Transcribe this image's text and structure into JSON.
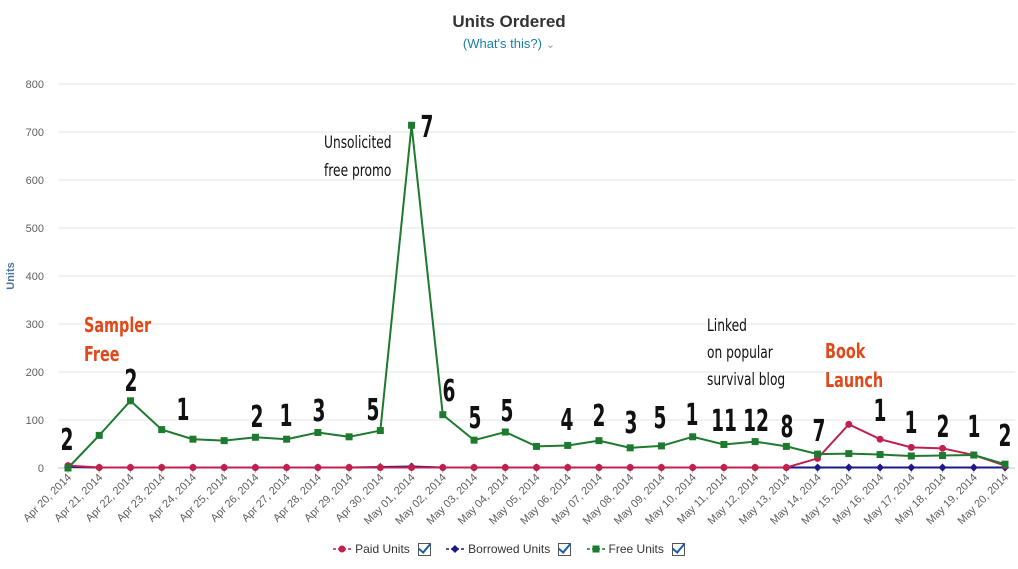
{
  "header": {
    "title": "Units Ordered",
    "subtitle": "(What's this?)"
  },
  "chart_data": {
    "type": "line",
    "title": "Units Ordered",
    "ylabel": "Units",
    "xlabel": "",
    "ylim": [
      0,
      800
    ],
    "yticks": [
      0,
      100,
      200,
      300,
      400,
      500,
      600,
      700,
      800
    ],
    "grid": true,
    "legend_position": "bottom",
    "categories": [
      "Apr 20, 2014",
      "Apr 21, 2014",
      "Apr 22, 2014",
      "Apr 23, 2014",
      "Apr 24, 2014",
      "Apr 25, 2014",
      "Apr 26, 2014",
      "Apr 27, 2014",
      "Apr 28, 2014",
      "Apr 29, 2014",
      "Apr 30, 2014",
      "May 01, 2014",
      "May 02, 2014",
      "May 03, 2014",
      "May 04, 2014",
      "May 05, 2014",
      "May 06, 2014",
      "May 07, 2014",
      "May 08, 2014",
      "May 09, 2014",
      "May 10, 2014",
      "May 11, 2014",
      "May 12, 2014",
      "May 13, 2014",
      "May 14, 2014",
      "May 15, 2014",
      "May 16, 2014",
      "May 17, 2014",
      "May 18, 2014",
      "May 19, 2014",
      "May 20, 2014"
    ],
    "series": [
      {
        "name": "Paid Units",
        "color": "#c0204e",
        "marker": "circle",
        "values": [
          5,
          1,
          1,
          1,
          1,
          1,
          1,
          1,
          1,
          1,
          1,
          1,
          1,
          1,
          1,
          1,
          1,
          1,
          1,
          1,
          1,
          1,
          1,
          1,
          20,
          91,
          60,
          43,
          41,
          27,
          5
        ]
      },
      {
        "name": "Borrowed Units",
        "color": "#1a1a8a",
        "marker": "diamond",
        "values": [
          2,
          1,
          1,
          1,
          1,
          1,
          1,
          1,
          1,
          1,
          2,
          3,
          1,
          1,
          1,
          1,
          1,
          1,
          1,
          1,
          1,
          1,
          1,
          1,
          1,
          1,
          1,
          1,
          1,
          1,
          1
        ]
      },
      {
        "name": "Free Units",
        "color": "#1e7a2e",
        "marker": "square",
        "values": [
          0,
          68,
          140,
          80,
          60,
          57,
          64,
          60,
          74,
          65,
          78,
          714,
          111,
          58,
          75,
          45,
          47,
          57,
          42,
          46,
          65,
          49,
          55,
          45,
          29,
          30,
          28,
          25,
          26,
          27,
          8
        ]
      }
    ],
    "data_labels": [
      {
        "index": 0,
        "text": "2"
      },
      {
        "index": 2,
        "text": "2"
      },
      {
        "index": 4,
        "text": "1"
      },
      {
        "index": 6,
        "text": "2"
      },
      {
        "index": 7,
        "text": "1"
      },
      {
        "index": 8,
        "text": "3"
      },
      {
        "index": 10,
        "text": "5"
      },
      {
        "index": 11,
        "text": "7"
      },
      {
        "index": 12,
        "text": "6"
      },
      {
        "index": 13,
        "text": "5"
      },
      {
        "index": 14,
        "text": "5"
      },
      {
        "index": 16,
        "text": "4"
      },
      {
        "index": 17,
        "text": "2"
      },
      {
        "index": 18,
        "text": "3"
      },
      {
        "index": 19,
        "text": "5"
      },
      {
        "index": 20,
        "text": "1"
      },
      {
        "index": 21,
        "text": "11"
      },
      {
        "index": 22,
        "text": "12"
      },
      {
        "index": 23,
        "text": "8"
      },
      {
        "index": 24,
        "text": "7"
      },
      {
        "index": 26,
        "text": "1"
      },
      {
        "index": 27,
        "text": "1"
      },
      {
        "index": 28,
        "text": "2"
      },
      {
        "index": 29,
        "text": "1"
      },
      {
        "index": 30,
        "text": "2"
      }
    ],
    "annotations": [
      {
        "lines": [
          "Sampler",
          "Free"
        ],
        "color": "#e04a1a"
      },
      {
        "lines": [
          "Unsolicited",
          "free promo"
        ],
        "color": "#111111"
      },
      {
        "lines": [
          "Linked",
          "on popular",
          "survival blog"
        ],
        "color": "#111111"
      },
      {
        "lines": [
          "Book",
          "Launch"
        ],
        "color": "#e04a1a"
      }
    ]
  },
  "legend": {
    "items": [
      "Paid Units",
      "Borrowed Units",
      "Free Units"
    ]
  }
}
